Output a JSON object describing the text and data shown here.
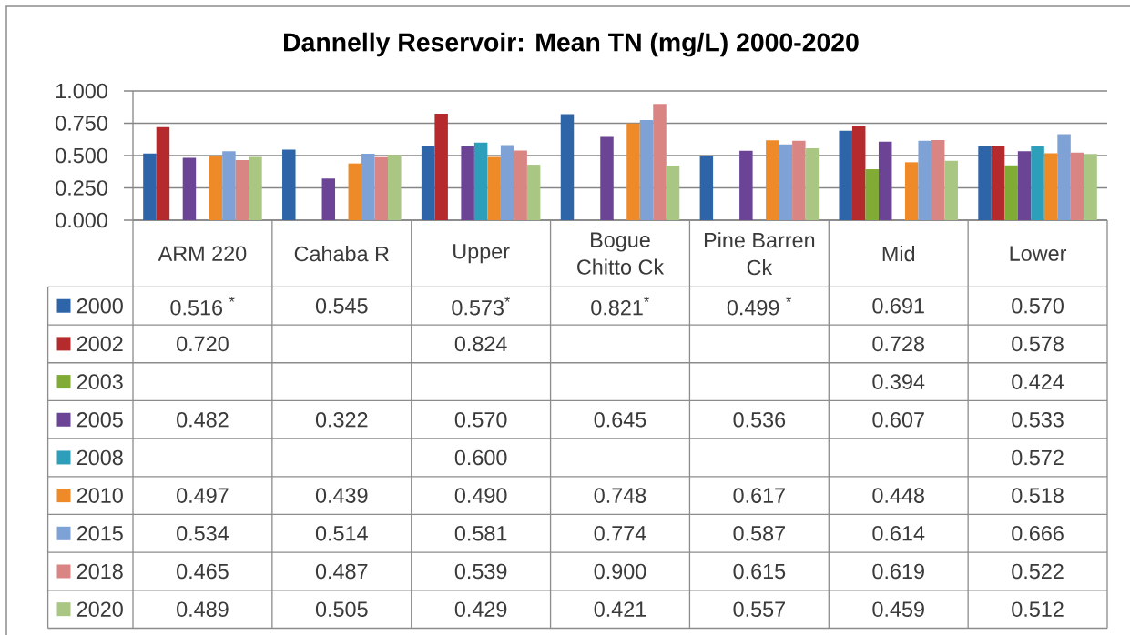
{
  "chart_data": {
    "type": "bar",
    "title": "Dannelly Reservoir: Mean TN (mg/L) 2000-2020",
    "categories": [
      "ARM 220",
      "Cahaba R",
      "Upper",
      "Bogue Chitto Ck",
      "Pine Barren Ck",
      "Mid",
      "Lower"
    ],
    "ylim": [
      0,
      1
    ],
    "yticks": [
      {
        "value": 0,
        "label": "0.000"
      },
      {
        "value": 0.25,
        "label": "0.250"
      },
      {
        "value": 0.5,
        "label": "0.500"
      },
      {
        "value": 0.75,
        "label": "0.750"
      },
      {
        "value": 1,
        "label": "1.000"
      }
    ],
    "grid": "y",
    "legend": "bottom left",
    "series": [
      {
        "name": "2000",
        "color": "#2e64a8",
        "values": [
          0.516,
          0.545,
          0.573,
          0.821,
          0.499,
          0.691,
          0.57
        ],
        "value_labels": [
          "0.516 $^{*}$",
          "0.545",
          "0.573$^{*}$",
          "0.821$^{*}$",
          "0.499 $^{*}$",
          "0.691",
          "0.570"
        ]
      },
      {
        "name": "2002",
        "color": "#b52a2c",
        "values": [
          0.72,
          null,
          0.824,
          null,
          null,
          0.728,
          0.578
        ],
        "value_labels": [
          "0.720",
          null,
          "0.824",
          null,
          null,
          "0.728",
          "0.578"
        ]
      },
      {
        "name": "2003",
        "color": "#80ab35",
        "values": [
          null,
          null,
          null,
          null,
          null,
          0.394,
          0.424
        ],
        "value_labels": [
          null,
          null,
          null,
          null,
          null,
          "0.394",
          "0.424"
        ]
      },
      {
        "name": "2005",
        "color": "#6b4495",
        "values": [
          0.482,
          0.322,
          0.57,
          0.645,
          0.536,
          0.607,
          0.533
        ],
        "value_labels": [
          "0.482",
          "0.322",
          "0.570",
          "0.645",
          "0.536",
          "0.607",
          "0.533"
        ]
      },
      {
        "name": "2008",
        "color": "#2d9fba",
        "values": [
          null,
          null,
          0.6,
          null,
          null,
          null,
          0.572
        ],
        "value_labels": [
          null,
          null,
          "0.600",
          null,
          null,
          null,
          "0.572"
        ]
      },
      {
        "name": "2010",
        "color": "#ee8a27",
        "values": [
          0.497,
          0.439,
          0.49,
          0.748,
          0.617,
          0.448,
          0.518
        ],
        "value_labels": [
          "0.497",
          "0.439",
          "0.490",
          "0.748",
          "0.617",
          "0.448",
          "0.518"
        ]
      },
      {
        "name": "2015",
        "color": "#7fa2d6",
        "values": [
          0.534,
          0.514,
          0.581,
          0.774,
          0.587,
          0.614,
          0.666
        ],
        "value_labels": [
          "0.534",
          "0.514",
          "0.581",
          "0.774",
          "0.587",
          "0.614",
          "0.666"
        ]
      },
      {
        "name": "2018",
        "color": "#d98583",
        "values": [
          0.465,
          0.487,
          0.539,
          0.9,
          0.615,
          0.619,
          0.522
        ],
        "value_labels": [
          "0.465",
          "0.487",
          "0.539",
          "0.900",
          "0.615",
          "0.619",
          "0.522"
        ]
      },
      {
        "name": "2020",
        "color": "#a9c683",
        "values": [
          0.489,
          0.505,
          0.429,
          0.421,
          0.557,
          0.459,
          0.512
        ],
        "value_labels": [
          "0.489",
          "0.505",
          "0.429",
          "0.421",
          "0.557",
          "0.459",
          "0.512"
        ]
      }
    ]
  }
}
